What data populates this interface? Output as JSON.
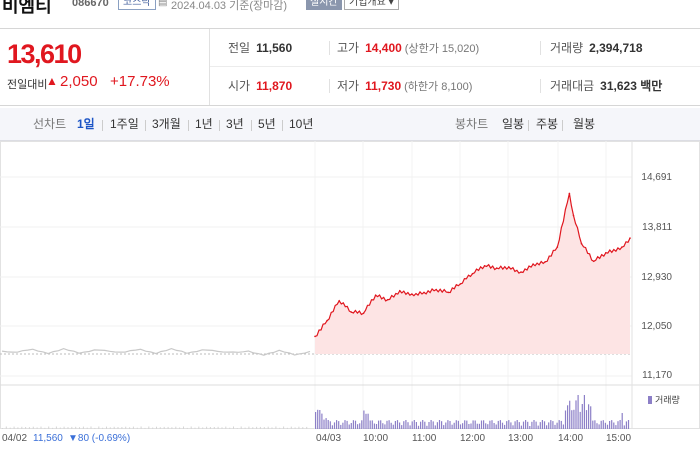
{
  "header": {
    "name": "비엠티",
    "code": "086670",
    "market": "코스닥",
    "base_date": "2024.04.03  기준(장마감)",
    "realtime_label": "실시간",
    "company_info_label": "기업개요 ▾"
  },
  "quote": {
    "price": "13,610",
    "change_label": "전일대비",
    "change_direction_icon": "up-triangle",
    "change_value": "2,050",
    "change_rate": "+17.73%",
    "prev_close_label": "전일",
    "prev_close": "11,560",
    "high_label": "고가",
    "high": "14,400",
    "upper_limit_text": "(상한가 15,020)",
    "volume_label": "거래량",
    "volume": "2,394,718",
    "open_label": "시가",
    "open": "11,870",
    "low_label": "저가",
    "low": "11,730",
    "lower_limit_text": "(하한가 8,100)",
    "amount_label": "거래대금",
    "amount": "31,623 백만"
  },
  "toolbar": {
    "line_chart_label": "선차트",
    "periods": [
      "1일",
      "1주일",
      "3개월",
      "1년",
      "3년",
      "5년",
      "10년"
    ],
    "active_period": "1일",
    "candle_label": "봉차트",
    "candles": [
      "일봉",
      "주봉",
      "월봉"
    ]
  },
  "chart": {
    "y_ticks": [
      "14,691",
      "13,811",
      "12,930",
      "12,050",
      "11,170"
    ],
    "prev_day_label": "04/02",
    "prev_day_close": "11,560",
    "prev_day_change": "▼80 (-0.69%)",
    "x_ticks": [
      "04/03",
      "10:00",
      "11:00",
      "12:00",
      "13:00",
      "14:00",
      "15:00"
    ],
    "volume_label": "거래량",
    "colors": {
      "today_line": "#e0171f",
      "today_fill": "#fde4e4",
      "prev_line": "#c8c8c8",
      "volume": "#8c7fc7"
    }
  },
  "chart_data": {
    "type": "line",
    "title": "",
    "xlabel": "",
    "ylabel": "",
    "ylim": [
      11170,
      14691
    ],
    "series": [
      {
        "x": [
          "09:00",
          "09:15",
          "09:30",
          "09:45",
          "10:00",
          "10:15",
          "10:30",
          "10:45",
          "11:00",
          "11:15",
          "11:30",
          "11:45",
          "12:00",
          "12:15",
          "12:30",
          "12:45",
          "13:00",
          "13:15",
          "13:30",
          "13:45",
          "14:00",
          "14:15",
          "14:20",
          "14:30",
          "14:45",
          "15:00",
          "15:20",
          "15:30"
        ],
        "values": [
          11870,
          12150,
          12500,
          12300,
          12280,
          12600,
          12520,
          12680,
          12620,
          12650,
          12700,
          12650,
          12800,
          12980,
          13120,
          13080,
          13100,
          13010,
          13150,
          13190,
          13450,
          14400,
          14010,
          13510,
          13200,
          13350,
          13450,
          13610
        ]
      }
    ]
  }
}
